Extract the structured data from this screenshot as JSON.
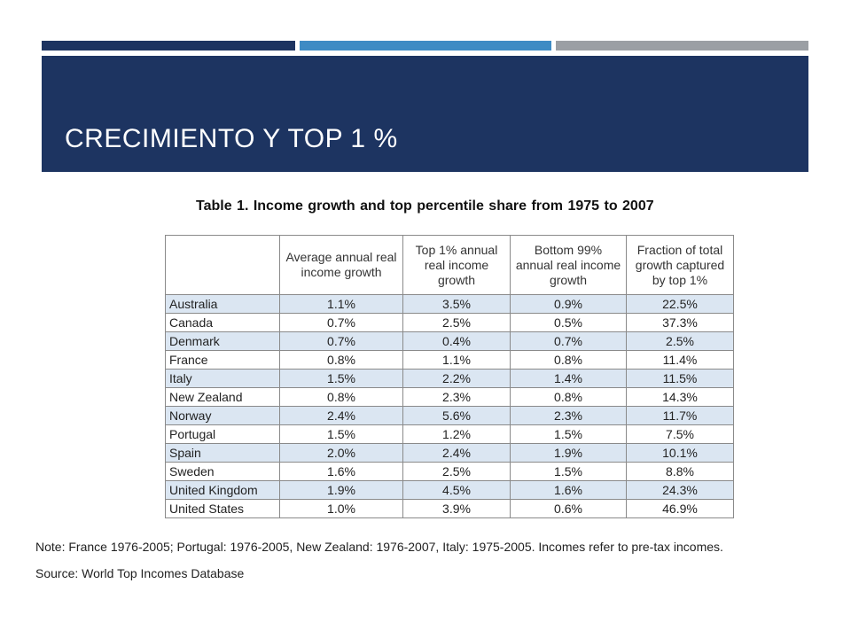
{
  "slide": {
    "title": "CRECIMIENTO Y TOP 1 %",
    "accent_colors": [
      "#1d3461",
      "#3e8bc4",
      "#9b9fa4"
    ]
  },
  "table": {
    "caption": "Table 1.   Income growth and top percentile share from 1975 to 2007",
    "headers": [
      "",
      "Average annual real income growth",
      "Top 1% annual real income growth",
      "Bottom 99% annual real income growth",
      "Fraction of total growth captured by top 1%"
    ],
    "rows": [
      [
        "Australia",
        "1.1%",
        "3.5%",
        "0.9%",
        "22.5%"
      ],
      [
        "Canada",
        "0.7%",
        "2.5%",
        "0.5%",
        "37.3%"
      ],
      [
        "Denmark",
        "0.7%",
        "0.4%",
        "0.7%",
        "2.5%"
      ],
      [
        "France",
        "0.8%",
        "1.1%",
        "0.8%",
        "11.4%"
      ],
      [
        "Italy",
        "1.5%",
        "2.2%",
        "1.4%",
        "11.5%"
      ],
      [
        "New Zealand",
        "0.8%",
        "2.3%",
        "0.8%",
        "14.3%"
      ],
      [
        "Norway",
        "2.4%",
        "5.6%",
        "2.3%",
        "11.7%"
      ],
      [
        "Portugal",
        "1.5%",
        "1.2%",
        "1.5%",
        "7.5%"
      ],
      [
        "Spain",
        "2.0%",
        "2.4%",
        "1.9%",
        "10.1%"
      ],
      [
        "Sweden",
        "1.6%",
        "2.5%",
        "1.5%",
        "8.8%"
      ],
      [
        "United Kingdom",
        "1.9%",
        "4.5%",
        "1.6%",
        "24.3%"
      ],
      [
        "United States",
        "1.0%",
        "3.9%",
        "0.6%",
        "46.9%"
      ]
    ]
  },
  "footer": {
    "note": "Note: France 1976-2005; Portugal: 1976-2005, New Zealand: 1976-2007, Italy: 1975-2005. Incomes refer to pre-tax incomes.",
    "source": "Source: World Top Incomes Database"
  }
}
